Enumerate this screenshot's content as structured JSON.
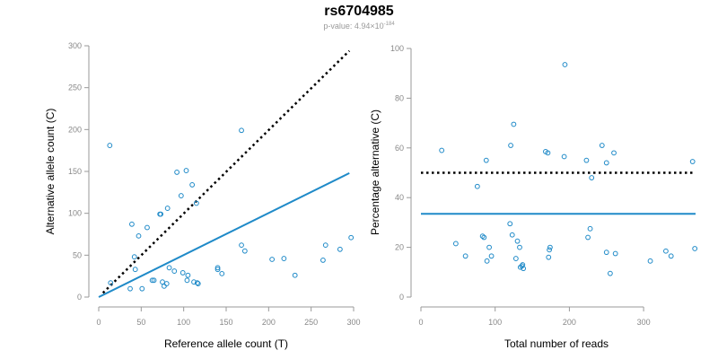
{
  "header": {
    "title": "rs6704985",
    "subtitle_prefix": "p-value: 4.94×10",
    "subtitle_exponent": "-184"
  },
  "colors": {
    "points": "#1f8ac8",
    "fit_line": "#1f8ac8",
    "reference_line": "#000000",
    "axis": "#999999",
    "tick_text": "#888888"
  },
  "chart_data": [
    {
      "type": "scatter",
      "xlabel": "Reference allele count (T)",
      "ylabel": "Alternative allele count (C)",
      "xlim": [
        0,
        300
      ],
      "ylim": [
        0,
        300
      ],
      "xticks": [
        0,
        50,
        100,
        150,
        200,
        250,
        300
      ],
      "yticks": [
        0,
        50,
        100,
        150,
        200,
        250,
        300
      ],
      "grid": false,
      "points": [
        [
          13,
          181
        ],
        [
          14,
          17
        ],
        [
          37,
          10
        ],
        [
          39,
          87
        ],
        [
          42,
          48
        ],
        [
          43,
          33
        ],
        [
          47,
          73
        ],
        [
          51,
          10
        ],
        [
          57,
          83
        ],
        [
          63,
          20
        ],
        [
          65,
          20
        ],
        [
          72,
          99
        ],
        [
          73,
          99
        ],
        [
          75,
          18
        ],
        [
          77,
          13
        ],
        [
          80,
          16
        ],
        [
          81,
          106
        ],
        [
          83,
          35
        ],
        [
          89,
          31
        ],
        [
          92,
          149
        ],
        [
          97,
          121
        ],
        [
          99,
          29
        ],
        [
          103,
          151
        ],
        [
          104,
          20
        ],
        [
          105,
          26
        ],
        [
          110,
          134
        ],
        [
          112,
          18
        ],
        [
          115,
          112
        ],
        [
          116,
          17
        ],
        [
          117,
          16
        ],
        [
          140,
          33
        ],
        [
          140,
          35
        ],
        [
          145,
          28
        ],
        [
          168,
          199
        ],
        [
          168,
          62
        ],
        [
          172,
          55
        ],
        [
          204,
          45
        ],
        [
          218,
          46
        ],
        [
          231,
          26
        ],
        [
          264,
          44
        ],
        [
          267,
          62
        ],
        [
          284,
          57
        ],
        [
          297,
          71
        ]
      ],
      "lines": [
        {
          "kind": "fit",
          "style": "solid",
          "x": [
            0,
            295
          ],
          "y": [
            0,
            148
          ]
        },
        {
          "kind": "reference",
          "style": "dotted",
          "x": [
            5,
            295
          ],
          "y": [
            5,
            294
          ]
        }
      ]
    },
    {
      "type": "scatter",
      "xlabel": "Total number of reads",
      "ylabel": "Percentage alternative (C)",
      "xlim": [
        0,
        370
      ],
      "ylim": [
        0,
        100
      ],
      "xticks": [
        0,
        100,
        200,
        300
      ],
      "yticks": [
        0,
        20,
        40,
        60,
        80,
        100
      ],
      "grid": false,
      "points": [
        [
          28,
          59
        ],
        [
          47,
          21.5
        ],
        [
          60,
          16.5
        ],
        [
          76,
          44.5
        ],
        [
          83,
          24.5
        ],
        [
          85,
          24
        ],
        [
          88,
          55
        ],
        [
          89,
          14.5
        ],
        [
          92,
          20
        ],
        [
          95,
          16.5
        ],
        [
          120,
          29.5
        ],
        [
          121,
          61
        ],
        [
          123,
          25
        ],
        [
          125,
          69.5
        ],
        [
          128,
          15.5
        ],
        [
          130,
          22.5
        ],
        [
          133,
          20
        ],
        [
          134,
          12
        ],
        [
          136,
          12.5
        ],
        [
          137,
          13
        ],
        [
          138,
          11.5
        ],
        [
          168,
          58.5
        ],
        [
          171,
          58
        ],
        [
          172,
          16
        ],
        [
          173,
          19
        ],
        [
          174,
          20
        ],
        [
          194,
          93.5
        ],
        [
          193,
          56.5
        ],
        [
          223,
          55
        ],
        [
          225,
          24
        ],
        [
          228,
          27.5
        ],
        [
          230,
          48
        ],
        [
          244,
          61
        ],
        [
          250,
          18
        ],
        [
          250,
          54
        ],
        [
          255,
          9.5
        ],
        [
          260,
          58
        ],
        [
          262,
          17.5
        ],
        [
          309,
          14.5
        ],
        [
          330,
          18.5
        ],
        [
          337,
          16.5
        ],
        [
          366,
          54.5
        ],
        [
          369,
          19.5
        ]
      ],
      "lines": [
        {
          "kind": "mean",
          "style": "solid",
          "x": [
            0,
            370
          ],
          "y": [
            33.5,
            33.5
          ]
        },
        {
          "kind": "reference",
          "style": "dotted",
          "x": [
            0,
            370
          ],
          "y": [
            50,
            50
          ]
        }
      ]
    }
  ]
}
